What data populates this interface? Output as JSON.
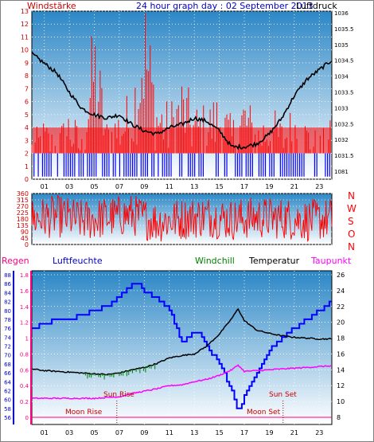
{
  "header": {
    "left_label": "Windstärke",
    "title": "24 hour graph day : 02 September 2013",
    "right_label": "Luftdruck"
  },
  "legend": {
    "regen": "Regen",
    "luftfeuchte": "Luftfeuchte",
    "windchill": "Windchill",
    "temperatur": "Temperatur",
    "taupunkt": "Taupunkt"
  },
  "compass": [
    "N",
    "W",
    "S",
    "O",
    "N"
  ],
  "hour_ticks": [
    "01",
    "03",
    "05",
    "07",
    "09",
    "11",
    "13",
    "15",
    "17",
    "19",
    "21",
    "23"
  ],
  "annotations": {
    "sun_rise": "Sun Rise",
    "sun_set": "Sun Set",
    "moon_rise": "Moon Rise",
    "moon_set": "Moon Set",
    "sun_rise_hour": 6.8,
    "sun_set_hour": 20.1,
    "moon_rise_hour": 6.8,
    "moon_set_hour": 20.1
  },
  "colors": {
    "sky_top": "#2c87c6",
    "sky_bottom": "#ffffff",
    "wind_bars": "#ff0000",
    "gust_bars": "#0000ff",
    "pressure_line": "#000000",
    "direction_line": "#ff0000",
    "humidity_line": "#0000ff",
    "temperature_line": "#000000",
    "windchill_line": "#008000",
    "dewpoint_line": "#ff00ff",
    "rain_axis": "#ff0080",
    "left_axis": "#cc0000",
    "title_blue": "#0000cc"
  },
  "chart_data": [
    {
      "type": "bar",
      "title": "24 hour graph day : 02 September 2013",
      "ylabel": "Windstärke",
      "y2label": "Luftdruck",
      "xlim": [
        0,
        24
      ],
      "ylim": [
        0,
        13
      ],
      "y2lim": [
        1080.5,
        1036
      ],
      "y_ticks": [
        0,
        1,
        2,
        3,
        4,
        5,
        6,
        7,
        8,
        9,
        10,
        11,
        12,
        13
      ],
      "y2_ticks": [
        "1036",
        "1035.5",
        "1035",
        "1034.5",
        "1034",
        "1033.5",
        "1033",
        "1032.5",
        "1032",
        "1031.5",
        "1081"
      ],
      "series": [
        {
          "name": "Windstärke",
          "x": [
            0,
            1,
            2,
            3,
            4,
            5,
            6,
            7,
            8,
            9,
            10,
            11,
            12,
            13,
            14,
            15,
            16,
            17,
            18,
            19,
            20,
            21,
            22,
            23,
            24
          ],
          "values": [
            3,
            4,
            3,
            5,
            3,
            11,
            4,
            5,
            6,
            13,
            6,
            5,
            7,
            5,
            5,
            6,
            4,
            6,
            4,
            5,
            4,
            5,
            4,
            3,
            4
          ]
        },
        {
          "name": "Luftdruck",
          "x": [
            0,
            1,
            2,
            3,
            4,
            5,
            6,
            7,
            8,
            9,
            10,
            11,
            12,
            13,
            14,
            15,
            16,
            17,
            18,
            19,
            20,
            21,
            22,
            23,
            24
          ],
          "values": [
            1034.8,
            1034.5,
            1034.2,
            1033.6,
            1033.1,
            1032.9,
            1032.8,
            1032.9,
            1032.6,
            1032.4,
            1032.3,
            1032.5,
            1032.6,
            1032.8,
            1032.7,
            1032.4,
            1031.9,
            1031.9,
            1032.0,
            1032.3,
            1032.8,
            1033.5,
            1034.0,
            1034.3,
            1034.6
          ]
        }
      ]
    },
    {
      "type": "line",
      "ylabel": "Windrichtung",
      "xlim": [
        0,
        24
      ],
      "ylim": [
        0,
        360
      ],
      "y_ticks": [
        0,
        45,
        90,
        135,
        180,
        225,
        270,
        315,
        360
      ],
      "series": [
        {
          "name": "Windrichtung",
          "x": [
            0,
            2,
            4,
            6,
            8,
            10,
            12,
            14,
            16,
            18,
            20,
            22,
            24
          ],
          "values": [
            180,
            200,
            170,
            190,
            210,
            160,
            180,
            200,
            175,
            190,
            185,
            170,
            180
          ]
        }
      ]
    },
    {
      "type": "line",
      "xlim": [
        0,
        24
      ],
      "y_left_rain": [
        0,
        1.8
      ],
      "y_left_humidity": [
        56,
        88
      ],
      "y_right_temperature": [
        8,
        26
      ],
      "rain_ticks": [
        "0",
        "0.2",
        "0.4",
        "0.6",
        "0.8",
        "1",
        "1.2",
        "1.4",
        "1.6",
        "1.8"
      ],
      "humidity_ticks": [
        56,
        58,
        60,
        62,
        64,
        66,
        68,
        70,
        72,
        74,
        76,
        78,
        80,
        82,
        84,
        86,
        88
      ],
      "temperature_ticks": [
        8,
        10,
        12,
        14,
        16,
        18,
        20,
        22,
        24,
        26
      ],
      "series": [
        {
          "name": "Luftfeuchte",
          "x": [
            0,
            1,
            2,
            3,
            4,
            5,
            6,
            7,
            8,
            8.5,
            9,
            10,
            11,
            12,
            13,
            13.5,
            14,
            15,
            16,
            16.5,
            17,
            18,
            19,
            20,
            21,
            22,
            23,
            24
          ],
          "values": [
            76,
            77,
            78,
            78,
            79,
            80,
            81,
            83,
            86,
            86,
            84,
            83,
            80,
            73,
            75,
            75,
            72,
            68,
            62,
            57,
            61,
            66,
            71,
            74,
            76,
            78,
            80,
            82
          ]
        },
        {
          "name": "Temperatur",
          "x": [
            0,
            1,
            2,
            3,
            4,
            5,
            6,
            7,
            8,
            9,
            10,
            11,
            12,
            13,
            14,
            15,
            16,
            16.5,
            17,
            18,
            19,
            20,
            21,
            22,
            23,
            24
          ],
          "values": [
            14.1,
            13.9,
            13.8,
            13.7,
            13.6,
            13.5,
            13.4,
            13.6,
            14.0,
            14.3,
            14.8,
            15.5,
            15.8,
            16.0,
            17.0,
            18.5,
            20.5,
            21.7,
            20.2,
            19.0,
            18.6,
            18.3,
            18.1,
            18.0,
            17.9,
            17.9
          ]
        },
        {
          "name": "Taupunkt",
          "x": [
            0,
            1,
            2,
            3,
            4,
            5,
            6,
            7,
            8,
            9,
            10,
            11,
            12,
            13,
            14,
            15,
            16,
            16.5,
            17,
            18,
            19,
            20,
            21,
            22,
            23,
            24
          ],
          "values": [
            10.4,
            10.4,
            10.4,
            10.4,
            10.4,
            10.4,
            10.5,
            10.6,
            11.0,
            11.3,
            11.6,
            12.0,
            12.1,
            12.5,
            12.8,
            13.3,
            14.0,
            14.6,
            13.8,
            13.9,
            14.0,
            14.1,
            14.2,
            14.3,
            14.4,
            14.5
          ]
        },
        {
          "name": "Windchill",
          "x": [
            0,
            1,
            2,
            3,
            4,
            5,
            6,
            7,
            8,
            9,
            10,
            11,
            12,
            13,
            14,
            15,
            16,
            17,
            18,
            19,
            20,
            21,
            22,
            23,
            24
          ],
          "values": [
            14.1,
            13.9,
            13.8,
            13.7,
            13.6,
            13.5,
            13.4,
            13.6,
            14.0,
            14.3,
            14.8,
            15.5,
            15.8,
            16.0,
            17.0,
            18.5,
            20.5,
            20.2,
            19.0,
            18.6,
            18.3,
            18.1,
            18.0,
            17.9,
            17.9
          ]
        },
        {
          "name": "Regen",
          "x": [
            0,
            24
          ],
          "values": [
            0,
            0
          ]
        }
      ]
    }
  ]
}
